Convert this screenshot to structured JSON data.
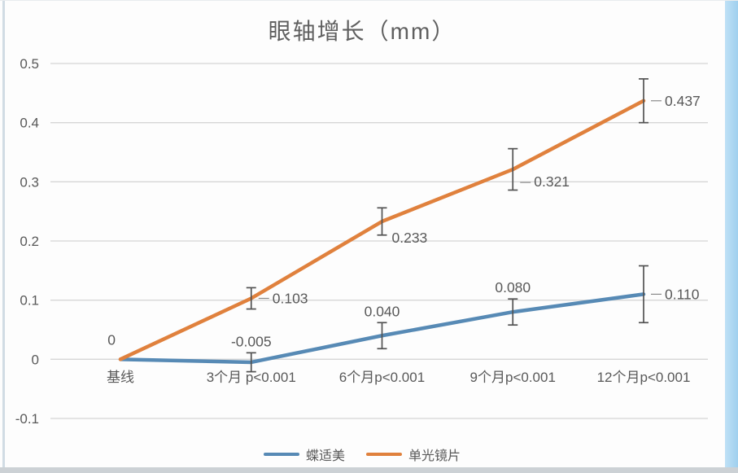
{
  "title": "眼轴增长（mm）",
  "chart_data": {
    "type": "line",
    "title": "眼轴增长（mm）",
    "categories": [
      "基线",
      "3个月 p<0.001",
      "6个月p<0.001",
      "9个月p<0.001",
      "12个月p<0.001"
    ],
    "y_ticks": [
      "0.5",
      "0.4",
      "0.3",
      "0.2",
      "0.1",
      "0",
      "-0.1"
    ],
    "ylim": [
      -0.1,
      0.5
    ],
    "grid": "horizontal",
    "legend_position": "bottom",
    "series": [
      {
        "name": "蝶适美",
        "color": "#578ab5",
        "values": [
          0,
          -0.005,
          0.04,
          0.08,
          0.11
        ],
        "labels": [
          "0",
          "-0.005",
          "0.040",
          "0.080",
          "0.110"
        ],
        "errors": [
          0,
          0.016,
          0.022,
          0.022,
          0.048
        ],
        "label_positions": [
          "above-left",
          "above",
          "above",
          "above",
          "right"
        ]
      },
      {
        "name": "单光镜片",
        "color": "#e0813d",
        "values": [
          0,
          0.103,
          0.233,
          0.321,
          0.437
        ],
        "labels": [
          "",
          "0.103",
          "0.233",
          "0.321",
          "0.437"
        ],
        "errors": [
          0,
          0.018,
          0.023,
          0.035,
          0.037
        ],
        "label_positions": [
          "none",
          "right",
          "below-right",
          "right-below",
          "right"
        ]
      }
    ],
    "colors": {
      "text": "#595959",
      "gridline": "#d6d6d6",
      "error_bar": "#525252",
      "leader": "#8a8a8a"
    }
  }
}
